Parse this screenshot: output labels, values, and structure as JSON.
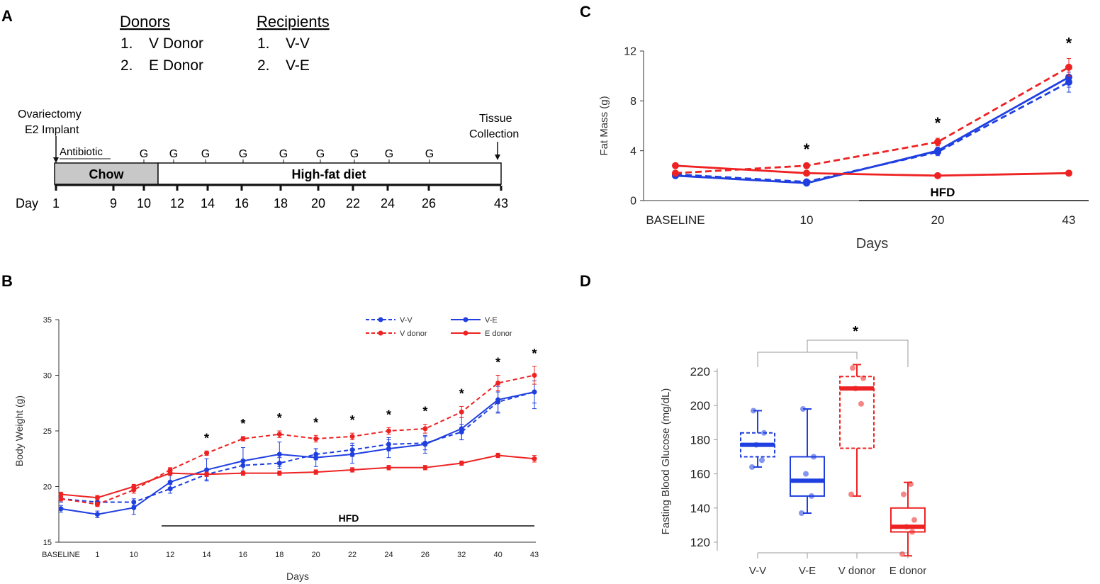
{
  "colors": {
    "blue": "#1f3fe0",
    "red": "#ee2222",
    "chow_fill": "#c8c8c8",
    "axis": "#333333",
    "bracket": "#999999"
  },
  "panel_a": {
    "label": "A",
    "donors_heading": "Donors",
    "donors": [
      "1.",
      "V Donor",
      "2.",
      "E Donor"
    ],
    "recipients_heading": "Recipients",
    "recipients": [
      "1.",
      "V-V",
      "2.",
      "V-E"
    ],
    "ovx_line1": "Ovariectomy",
    "ovx_line2": "E2 Implant",
    "antibiotic": "Antibiotic",
    "tissue_line1": "Tissue",
    "tissue_line2": "Collection",
    "gavage_label": "G",
    "gavage_count": 9,
    "chow_label": "Chow",
    "hfd_label": "High-fat diet",
    "day_label": "Day",
    "days": [
      "1",
      "9",
      "10",
      "12",
      "14",
      "16",
      "18",
      "20",
      "22",
      "24",
      "26",
      "43"
    ]
  },
  "chart_data": [
    {
      "panel": "B",
      "type": "line",
      "ylabel": "Body Weight (g)",
      "xlabel": "Days",
      "ylim": [
        15,
        35
      ],
      "yticks": [
        "15",
        "20",
        "25",
        "30",
        "35"
      ],
      "categories": [
        "BASELINE",
        "1",
        "10",
        "12",
        "14",
        "16",
        "18",
        "20",
        "22",
        "24",
        "26",
        "32",
        "40",
        "43"
      ],
      "series": [
        {
          "name": "V-V",
          "color": "blue",
          "dashed": true,
          "values": [
            18.9,
            18.6,
            18.6,
            19.8,
            21.1,
            21.9,
            22.1,
            22.9,
            23.3,
            23.8,
            23.9,
            24.9,
            27.6,
            28.5
          ],
          "errors": [
            0.3,
            0.3,
            0.3,
            0.4,
            0.5,
            0.5,
            0.5,
            0.5,
            0.6,
            0.6,
            0.6,
            0.7,
            0.9,
            1.0
          ]
        },
        {
          "name": "V-E",
          "color": "blue",
          "dashed": false,
          "values": [
            18.0,
            17.5,
            18.1,
            20.4,
            21.5,
            22.3,
            22.9,
            22.6,
            22.9,
            23.4,
            23.8,
            25.2,
            27.8,
            28.5
          ],
          "errors": [
            0.3,
            0.3,
            0.6,
            0.6,
            1.0,
            1.2,
            1.1,
            0.8,
            0.8,
            0.8,
            0.8,
            1.0,
            1.2,
            1.5
          ]
        },
        {
          "name": "V donor",
          "color": "red",
          "dashed": true,
          "values": [
            18.9,
            18.4,
            19.7,
            21.5,
            23.0,
            24.3,
            24.7,
            24.3,
            24.5,
            25.0,
            25.2,
            26.7,
            29.3,
            30.0
          ],
          "errors": [
            0.2,
            0.2,
            0.3,
            0.2,
            0.2,
            0.2,
            0.3,
            0.3,
            0.3,
            0.3,
            0.4,
            0.5,
            0.7,
            0.8
          ]
        },
        {
          "name": "E donor",
          "color": "red",
          "dashed": false,
          "values": [
            19.3,
            19.0,
            20.0,
            21.2,
            21.1,
            21.2,
            21.2,
            21.3,
            21.5,
            21.7,
            21.7,
            22.1,
            22.8,
            22.5
          ],
          "errors": [
            0.2,
            0.2,
            0.2,
            0.2,
            0.2,
            0.2,
            0.2,
            0.2,
            0.2,
            0.2,
            0.2,
            0.2,
            0.2,
            0.3
          ]
        }
      ],
      "significance_symbol": "*",
      "significant_categories": [
        "14",
        "16",
        "18",
        "20",
        "22",
        "24",
        "26",
        "32",
        "40",
        "43"
      ],
      "annotation": "HFD",
      "legend": "top-right"
    },
    {
      "panel": "C",
      "type": "line",
      "ylabel": "Fat Mass (g)",
      "xlabel": "Days",
      "ylim": [
        0,
        12
      ],
      "yticks": [
        "0",
        "4",
        "8",
        "12"
      ],
      "categories": [
        "BASELINE",
        "10",
        "20",
        "43"
      ],
      "series": [
        {
          "name": "V-V",
          "color": "blue",
          "dashed": true,
          "values": [
            2.1,
            1.5,
            3.9,
            9.5
          ],
          "errors": [
            0.1,
            0.1,
            0.3,
            0.8
          ]
        },
        {
          "name": "V-E",
          "color": "blue",
          "dashed": false,
          "values": [
            2.0,
            1.4,
            4.0,
            9.9
          ],
          "errors": [
            0.1,
            0.1,
            0.3,
            0.8
          ]
        },
        {
          "name": "V donor",
          "color": "red",
          "dashed": true,
          "values": [
            2.2,
            2.8,
            4.7,
            10.7
          ],
          "errors": [
            0.1,
            0.1,
            0.3,
            0.7
          ]
        },
        {
          "name": "E donor",
          "color": "red",
          "dashed": false,
          "values": [
            2.8,
            2.2,
            2.0,
            2.2
          ],
          "errors": [
            0.1,
            0.1,
            0.1,
            0.2
          ]
        }
      ],
      "significance_symbol": "*",
      "significant_categories": [
        "10",
        "20",
        "43"
      ],
      "annotation": "HFD"
    },
    {
      "panel": "D",
      "type": "box",
      "ylabel": "Fasting Blood Glucose (mg/dL)",
      "ylim": [
        115,
        225
      ],
      "yticks": [
        "120",
        "140",
        "160",
        "180",
        "200",
        "220"
      ],
      "categories": [
        "V-V",
        "V-E",
        "V donor",
        "E donor"
      ],
      "groups": [
        {
          "name": "V-V",
          "color": "blue",
          "dashed": true,
          "min": 164,
          "q1": 170,
          "median": 177,
          "q3": 184,
          "max": 197,
          "points": [
            164,
            168,
            177,
            184,
            197
          ]
        },
        {
          "name": "V-E",
          "color": "blue",
          "dashed": false,
          "min": 137,
          "q1": 147,
          "median": 156,
          "q3": 170,
          "max": 198,
          "points": [
            137,
            147,
            160,
            170,
            198
          ]
        },
        {
          "name": "V donor",
          "color": "red",
          "dashed": true,
          "min": 147,
          "q1": 175,
          "median": 210,
          "q3": 217,
          "max": 224,
          "points": [
            148,
            201,
            210,
            216,
            222
          ]
        },
        {
          "name": "E donor",
          "color": "red",
          "dashed": false,
          "min": 112,
          "q1": 126,
          "median": 129,
          "q3": 140,
          "max": 155,
          "points": [
            113,
            126,
            129,
            133,
            148,
            154
          ]
        }
      ],
      "significance_symbol": "*"
    }
  ],
  "panel_b": {
    "label": "B"
  },
  "panel_c": {
    "label": "C"
  },
  "panel_d": {
    "label": "D"
  }
}
